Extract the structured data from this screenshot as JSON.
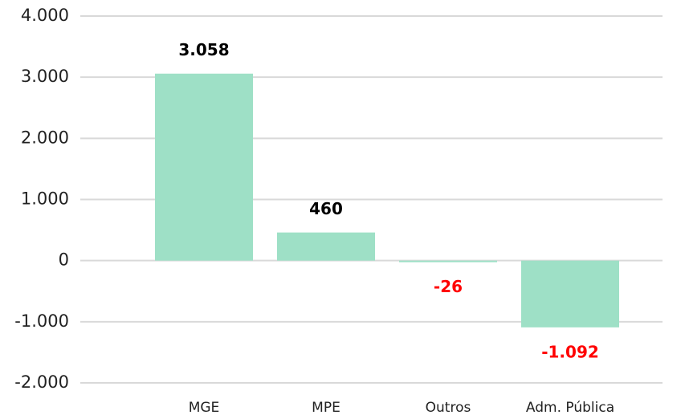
{
  "chart_data": {
    "type": "bar",
    "categories": [
      "MGE",
      "MPE",
      "Outros",
      "Adm. Pública"
    ],
    "values": [
      3058,
      460,
      -26,
      -1092
    ],
    "value_labels": [
      "3.058",
      "460",
      "-26",
      "-1.092"
    ],
    "color": "#9ee0c6",
    "label_color": "#000000",
    "negative_label_color": "#ff0000",
    "ylim": [
      -2000,
      4000
    ],
    "yticks": [
      {
        "value": -2000,
        "label": "-2.000"
      },
      {
        "value": -1000,
        "label": "-1.000"
      },
      0,
      {
        "value": 1000,
        "label": "1.000"
      },
      {
        "value": 2000,
        "label": "2.000"
      },
      {
        "value": 3000,
        "label": "3.000"
      },
      {
        "value": 4000,
        "label": "4.000"
      }
    ],
    "grid": true
  }
}
